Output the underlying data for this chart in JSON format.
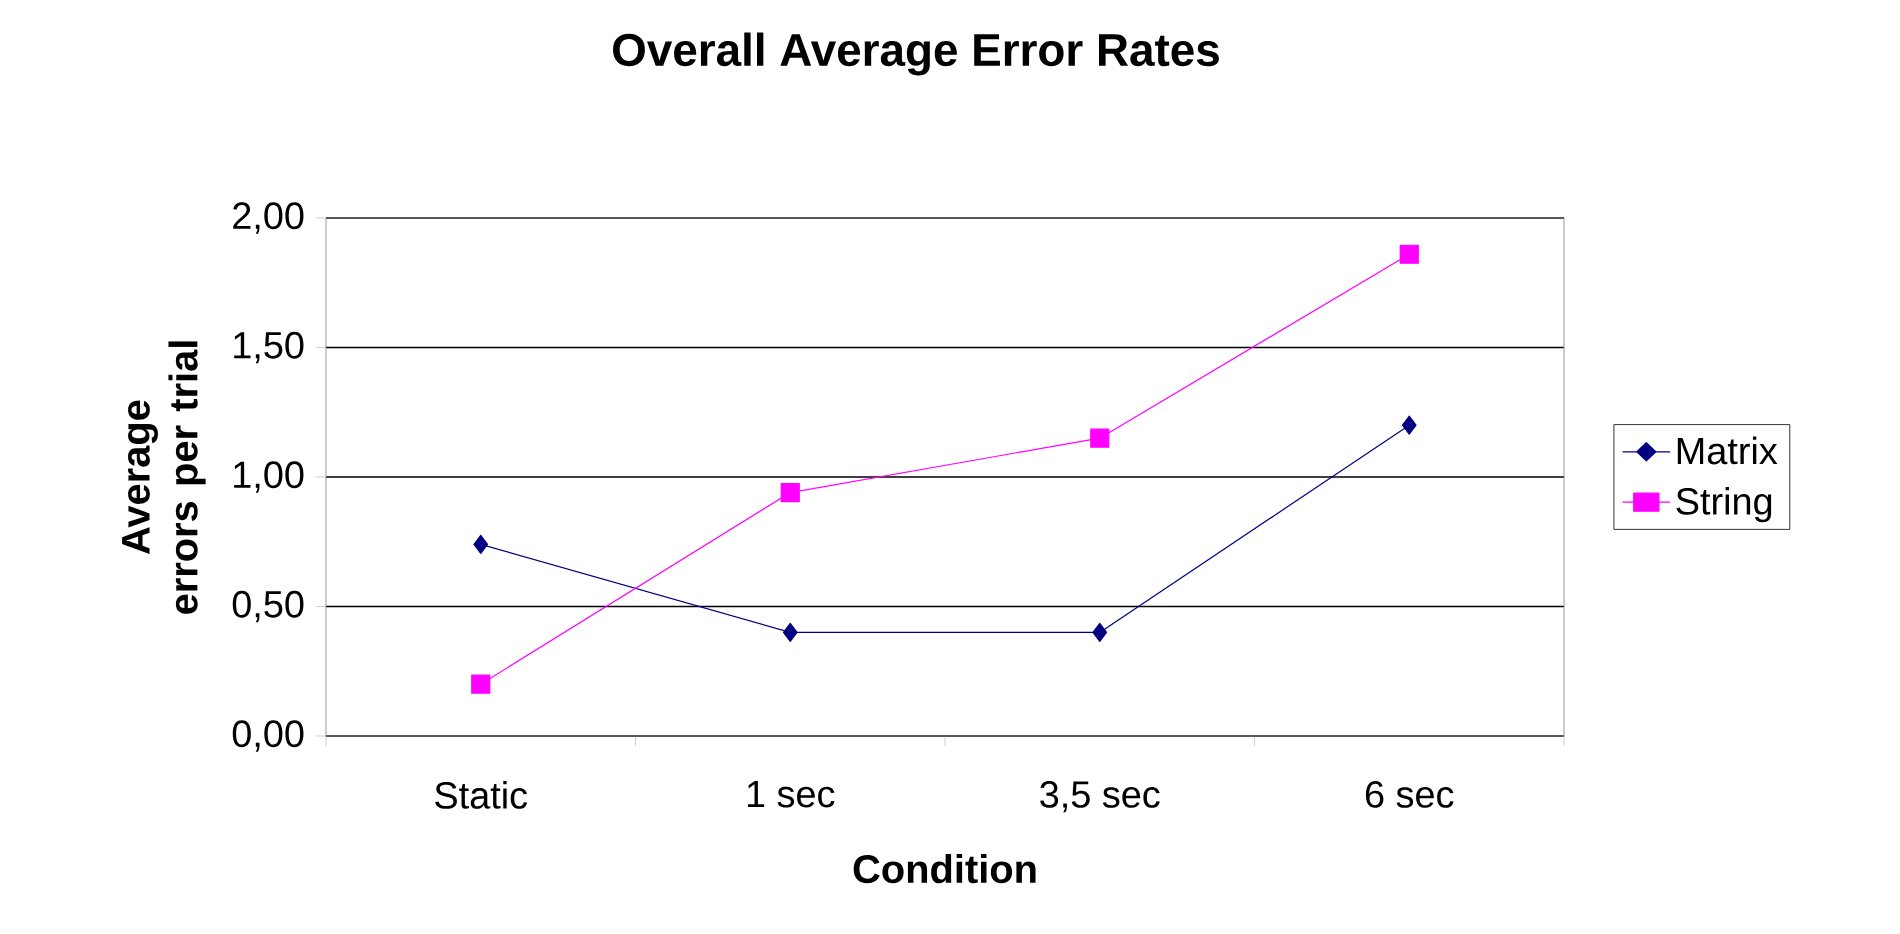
{
  "chart_data": {
    "type": "line",
    "title": "Overall Average Error Rates",
    "xlabel": "Condition",
    "ylabel": "Average errors per trial",
    "categories": [
      "Static",
      "1 sec",
      "3,5 sec",
      "6 sec"
    ],
    "series": [
      {
        "name": "Matrix",
        "color": "#000080",
        "marker": "diamond",
        "values": [
          0.74,
          0.4,
          0.4,
          1.2
        ]
      },
      {
        "name": "String",
        "color": "#ff00ff",
        "marker": "square",
        "values": [
          0.2,
          0.94,
          1.15,
          1.86
        ]
      }
    ],
    "ylim": [
      0,
      2
    ],
    "yticks": [
      {
        "value": 0,
        "label": "0,00"
      },
      {
        "value": 0.5,
        "label": "0,50"
      },
      {
        "value": 1,
        "label": "1,00"
      },
      {
        "value": 1.5,
        "label": "1,50"
      },
      {
        "value": 2,
        "label": "2,00"
      }
    ],
    "grid": "y",
    "legend": "right",
    "line_style": "solid"
  }
}
